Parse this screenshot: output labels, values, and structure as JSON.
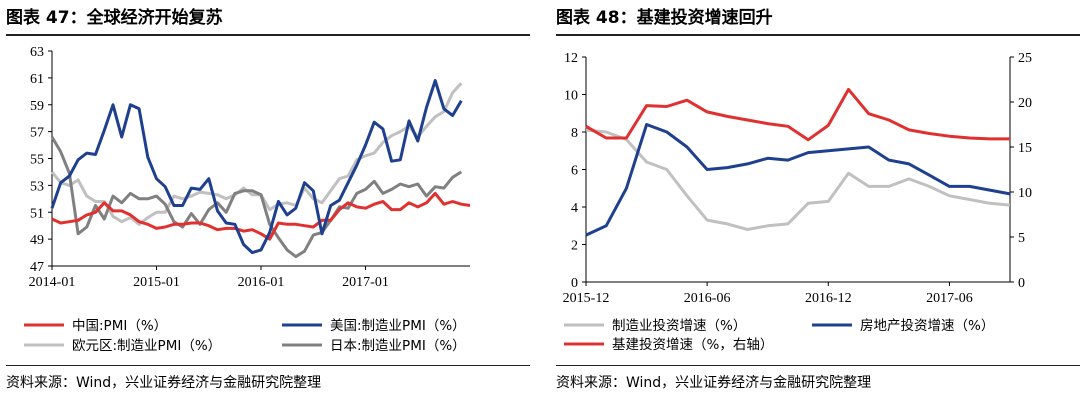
{
  "left": {
    "title": "图表 47：全球经济开始复苏",
    "source": "资料来源：Wind，兴业证券经济与金融研究院整理"
  },
  "right": {
    "title": "图表 48：基建投资增速回升",
    "source": "资料来源：Wind，兴业证券经济与金融研究院整理"
  },
  "chart_data": [
    {
      "type": "line",
      "x_ticks": [
        "2014-01",
        "2015-01",
        "2016-01",
        "2017-01"
      ],
      "y_ticks": [
        47,
        49,
        51,
        53,
        55,
        57,
        59,
        61,
        63
      ],
      "ylim": [
        47,
        63
      ],
      "xlim": [
        0,
        51
      ],
      "grid": false,
      "legend_position": "bottom",
      "series": [
        {
          "name": "中国:PMI（%）",
          "color": "#e03030",
          "values": [
            50.5,
            50.2,
            50.3,
            50.4,
            50.8,
            51.0,
            51.7,
            51.1,
            51.1,
            50.8,
            50.3,
            50.1,
            49.8,
            49.9,
            50.1,
            50.1,
            50.2,
            50.2,
            50.0,
            49.7,
            49.8,
            49.8,
            49.6,
            49.7,
            49.4,
            49.0,
            50.2,
            50.1,
            50.1,
            50.0,
            49.9,
            50.4,
            50.4,
            51.2,
            51.7,
            51.4,
            51.3,
            51.6,
            51.8,
            51.2,
            51.2,
            51.7,
            51.4,
            51.7,
            52.4,
            51.6,
            51.8,
            51.6,
            51.5
          ]
        },
        {
          "name": "美国:制造业PMI（%）",
          "color": "#1f3f8f",
          "values": [
            51.3,
            53.2,
            53.7,
            54.9,
            55.4,
            55.3,
            57.1,
            59.0,
            56.6,
            59.0,
            58.7,
            55.1,
            53.5,
            52.9,
            51.5,
            51.5,
            52.8,
            52.7,
            53.5,
            51.1,
            50.2,
            50.1,
            48.6,
            48.0,
            48.2,
            49.5,
            51.8,
            50.8,
            51.3,
            53.2,
            52.6,
            49.4,
            51.5,
            51.9,
            53.2,
            54.5,
            56.0,
            57.7,
            57.2,
            54.8,
            54.9,
            57.8,
            56.3,
            58.8,
            60.8,
            58.7,
            58.2,
            59.3
          ]
        },
        {
          "name": "欧元区:制造业PMI（%）",
          "color": "#c0c0c0",
          "values": [
            54.0,
            53.2,
            53.0,
            53.4,
            52.2,
            51.8,
            51.8,
            50.7,
            50.3,
            50.6,
            50.1,
            50.6,
            51.0,
            51.0,
            52.2,
            52.0,
            52.2,
            52.5,
            52.4,
            52.3,
            52.0,
            52.3,
            52.8,
            52.3,
            52.3,
            51.2,
            51.6,
            51.7,
            51.5,
            52.8,
            52.0,
            51.7,
            52.6,
            53.5,
            53.7,
            54.9,
            55.2,
            55.4,
            56.2,
            56.7,
            57.0,
            57.4,
            56.6,
            57.4,
            58.1,
            58.5,
            59.9,
            60.6
          ]
        },
        {
          "name": "日本:制造业PMI（%）",
          "color": "#808080",
          "values": [
            56.6,
            55.5,
            53.9,
            49.4,
            49.9,
            51.5,
            50.5,
            52.2,
            51.7,
            52.4,
            52.0,
            52.0,
            52.2,
            51.6,
            50.3,
            49.9,
            50.9,
            50.1,
            51.2,
            51.7,
            51.0,
            52.4,
            52.6,
            52.6,
            52.3,
            50.1,
            49.1,
            48.2,
            47.7,
            48.1,
            49.3,
            49.5,
            50.4,
            51.4,
            51.3,
            52.4,
            52.7,
            53.3,
            52.4,
            52.7,
            53.1,
            52.9,
            53.1,
            52.2,
            52.9,
            52.8,
            53.6,
            54.0
          ]
        }
      ]
    },
    {
      "type": "line",
      "x_ticks": [
        "2015-12",
        "2016-06",
        "2016-12",
        "2017-06"
      ],
      "y_left_ticks": [
        0,
        2,
        4,
        6,
        8,
        10,
        12
      ],
      "y_right_ticks": [
        0,
        5,
        10,
        15,
        20,
        25
      ],
      "ylim_left": [
        0,
        12
      ],
      "ylim_right": [
        0,
        25
      ],
      "xlim": [
        0,
        21
      ],
      "grid": false,
      "legend_position": "bottom",
      "series": [
        {
          "name": "制造业投资增速（%）",
          "color": "#c0c0c0",
          "axis": "left",
          "values": [
            8.1,
            8.0,
            7.6,
            6.4,
            6.0,
            4.6,
            3.3,
            3.1,
            2.8,
            3.0,
            3.1,
            4.2,
            4.3,
            5.8,
            5.1,
            5.1,
            5.5,
            5.1,
            4.6,
            4.4,
            4.2,
            4.1
          ]
        },
        {
          "name": "房地产投资增速（%）",
          "color": "#1f3f8f",
          "axis": "left",
          "values": [
            2.5,
            3.0,
            5.0,
            8.4,
            8.0,
            7.2,
            6.0,
            6.1,
            6.3,
            6.6,
            6.5,
            6.9,
            7.0,
            7.1,
            7.2,
            6.5,
            6.3,
            5.7,
            5.1,
            5.1,
            4.9,
            4.7
          ]
        },
        {
          "name": "基建投资增速（%，右轴）",
          "color": "#e03030",
          "axis": "right",
          "values": [
            17.3,
            16.0,
            16.0,
            19.6,
            19.5,
            20.2,
            18.9,
            18.4,
            18.0,
            17.6,
            17.3,
            15.8,
            17.4,
            21.4,
            18.7,
            18.0,
            16.9,
            16.5,
            16.2,
            16.0,
            15.9,
            15.9
          ]
        }
      ]
    }
  ]
}
